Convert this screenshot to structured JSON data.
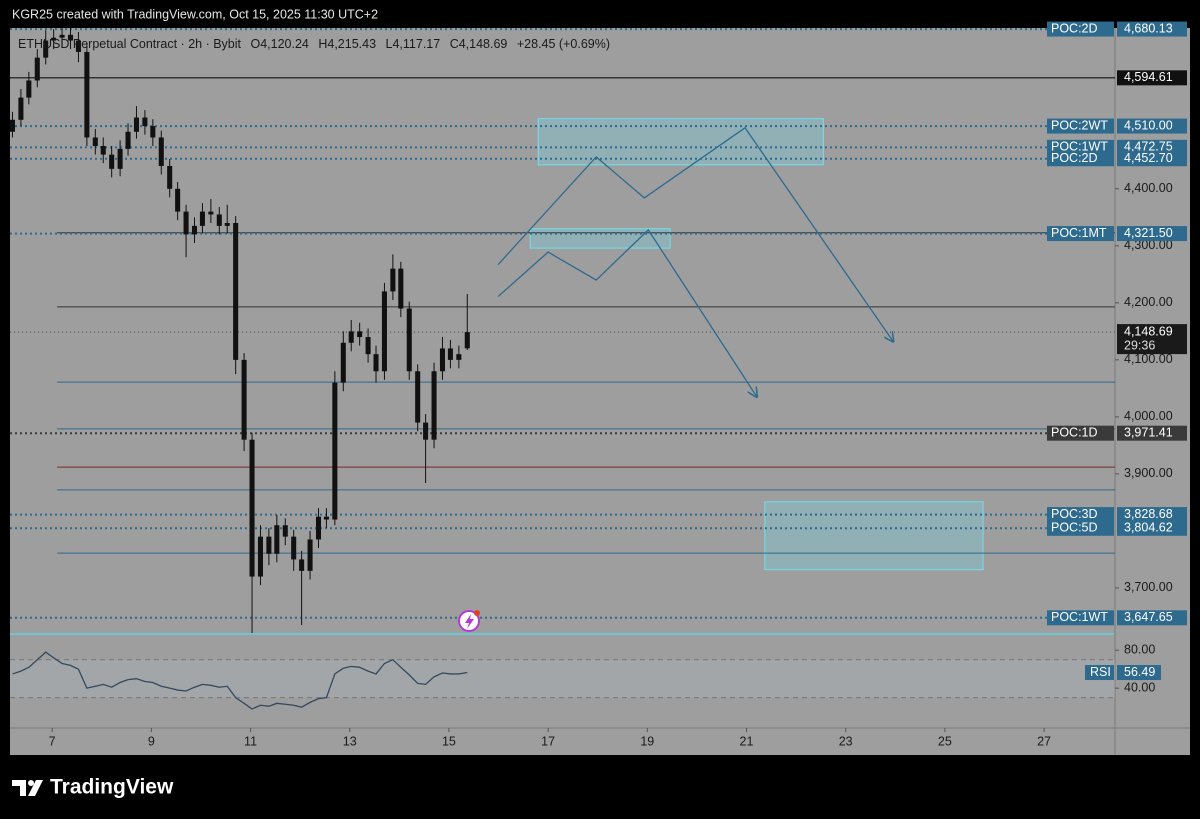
{
  "header": {
    "text": "KGR25 created with TradingView.com, Oct 15, 2025 11:30 UTC+2"
  },
  "footer": {
    "brand": "TradingView"
  },
  "chart_data": {
    "type": "candlestick",
    "legend": {
      "symbol": "ETHUSD Perpetual Contract · 2h · Bybit",
      "items": [
        "O4,120.24",
        "H4,215.43",
        "L4,117.17",
        "C4,148.69",
        "+28.45 (+0.69%)"
      ]
    },
    "xlim": [
      6.15,
      28.43
    ],
    "xticks": [
      7,
      9,
      11,
      13,
      15,
      17,
      19,
      21,
      23,
      25,
      27
    ],
    "ylim": [
      3621,
      4682
    ],
    "yticks": [
      {
        "value": 3700,
        "label": "3,700.00"
      },
      {
        "value": 3900,
        "label": "3,900.00"
      },
      {
        "value": 4000,
        "label": "4,000.00"
      },
      {
        "value": 4100,
        "label": "4,100.00"
      },
      {
        "value": 4200,
        "label": "4,200.00"
      },
      {
        "value": 4300,
        "label": "4,300.00"
      },
      {
        "value": 4400,
        "label": "4,400.00"
      }
    ],
    "candle_color": "#111111",
    "x": [
      6.2,
      6.37,
      6.53,
      6.7,
      6.87,
      7.03,
      7.2,
      7.37,
      7.53,
      7.7,
      7.87,
      8.03,
      8.2,
      8.37,
      8.53,
      8.7,
      8.87,
      9.03,
      9.2,
      9.37,
      9.53,
      9.7,
      9.87,
      10.03,
      10.2,
      10.37,
      10.53,
      10.7,
      10.87,
      11.03,
      11.2,
      11.37,
      11.53,
      11.7,
      11.87,
      12.03,
      12.2,
      12.37,
      12.53,
      12.7,
      12.87,
      13.03,
      13.2,
      13.37,
      13.53,
      13.7,
      13.87,
      14.03,
      14.2,
      14.37,
      14.53,
      14.7,
      14.87,
      15.03,
      15.2,
      15.37
    ],
    "candles": [
      [
        4500,
        4535,
        4490,
        4521
      ],
      [
        4521,
        4575,
        4510,
        4560
      ],
      [
        4560,
        4605,
        4548,
        4590
      ],
      [
        4590,
        4645,
        4578,
        4630
      ],
      [
        4630,
        4678,
        4618,
        4660
      ],
      [
        4660,
        4680,
        4645,
        4665
      ],
      [
        4665,
        4685,
        4650,
        4670
      ],
      [
        4670,
        4684,
        4645,
        4660
      ],
      [
        4660,
        4675,
        4622,
        4640
      ],
      [
        4640,
        4655,
        4475,
        4490
      ],
      [
        4490,
        4505,
        4460,
        4475
      ],
      [
        4475,
        4490,
        4445,
        4460
      ],
      [
        4460,
        4475,
        4420,
        4435
      ],
      [
        4435,
        4485,
        4422,
        4470
      ],
      [
        4470,
        4515,
        4458,
        4500
      ],
      [
        4500,
        4545,
        4488,
        4525
      ],
      [
        4525,
        4538,
        4495,
        4510
      ],
      [
        4510,
        4522,
        4475,
        4490
      ],
      [
        4490,
        4502,
        4425,
        4440
      ],
      [
        4440,
        4452,
        4385,
        4400
      ],
      [
        4400,
        4412,
        4345,
        4360
      ],
      [
        4360,
        4372,
        4280,
        4320
      ],
      [
        4320,
        4350,
        4305,
        4335
      ],
      [
        4335,
        4375,
        4322,
        4360
      ],
      [
        4360,
        4382,
        4340,
        4355
      ],
      [
        4355,
        4368,
        4320,
        4335
      ],
      [
        4335,
        4372,
        4322,
        4340
      ],
      [
        4340,
        4352,
        4075,
        4100
      ],
      [
        4100,
        4112,
        3940,
        3960
      ],
      [
        3960,
        3972,
        3621,
        3720
      ],
      [
        3720,
        3810,
        3705,
        3790
      ],
      [
        3790,
        3805,
        3740,
        3760
      ],
      [
        3760,
        3828,
        3745,
        3810
      ],
      [
        3810,
        3822,
        3775,
        3790
      ],
      [
        3790,
        3802,
        3730,
        3750
      ],
      [
        3750,
        3765,
        3635,
        3730
      ],
      [
        3730,
        3800,
        3715,
        3785
      ],
      [
        3785,
        3840,
        3770,
        3825
      ],
      [
        3825,
        3840,
        3805,
        3820
      ],
      [
        3820,
        4080,
        3810,
        4060
      ],
      [
        4060,
        4150,
        4045,
        4130
      ],
      [
        4130,
        4170,
        4115,
        4150
      ],
      [
        4150,
        4165,
        4125,
        4140
      ],
      [
        4140,
        4155,
        4095,
        4110
      ],
      [
        4110,
        4125,
        4060,
        4080
      ],
      [
        4080,
        4235,
        4065,
        4220
      ],
      [
        4220,
        4285,
        4205,
        4260
      ],
      [
        4260,
        4272,
        4175,
        4190
      ],
      [
        4190,
        4202,
        4065,
        4080
      ],
      [
        4080,
        4092,
        3975,
        3990
      ],
      [
        3990,
        4005,
        3884,
        3960
      ],
      [
        3960,
        4095,
        3945,
        4080
      ],
      [
        4080,
        4140,
        4065,
        4120
      ],
      [
        4120,
        4135,
        4085,
        4100
      ],
      [
        4100,
        4125,
        4085,
        4110
      ],
      [
        4120.24,
        4215.43,
        4117.17,
        4148.69
      ]
    ],
    "current_price": {
      "value": 4148.69,
      "label": "4,148.69",
      "countdown": "29:36"
    },
    "levels": [
      {
        "name": "POC:2D",
        "value": 4680.13,
        "label": "4,680.13",
        "color": "#2d6a8e",
        "style": "dotted"
      },
      {
        "value": 4594.61,
        "label": "4,594.61",
        "color": "#111111",
        "style": "solid"
      },
      {
        "name": "POC:2WT",
        "value": 4510,
        "label": "4,510.00",
        "color": "#2d6a8e",
        "style": "dotted"
      },
      {
        "name": "POC:1WT",
        "value": 4472.75,
        "label": "4,472.75",
        "color": "#2d6a8e",
        "style": "dotted"
      },
      {
        "name": "POC:2D",
        "value": 4452.7,
        "label": "4,452.70",
        "color": "#2d6a8e",
        "style": "dotted"
      },
      {
        "name": "POC:1MT",
        "value": 4321.5,
        "label": "4,321.50",
        "color": "#2d6a8e",
        "style": "dotted"
      },
      {
        "name": "POC:1D",
        "value": 3971.41,
        "label": "3,971.41",
        "color": "#3a3a3a",
        "style": "dotted"
      },
      {
        "name": "POC:3D",
        "value": 3828.68,
        "label": "3,828.68",
        "color": "#2d6a8e",
        "style": "dotted"
      },
      {
        "name": "POC:5D",
        "value": 3804.62,
        "label": "3,804.62",
        "color": "#2d6a8e",
        "style": "dotted"
      },
      {
        "name": "POC:1WT",
        "value": 3647.65,
        "label": "3,647.65",
        "color": "#2d6a8e",
        "style": "dotted"
      }
    ],
    "lines": [
      {
        "value": 4323,
        "from": 7.1,
        "color": "#333333"
      },
      {
        "value": 4193,
        "from": 7.1,
        "color": "#333333"
      },
      {
        "value": 4061,
        "from": 7.1,
        "color": "#2d6a8e"
      },
      {
        "value": 3979,
        "from": 7.1,
        "color": "#2d6a8e"
      },
      {
        "value": 3912,
        "from": 7.1,
        "color": "#7a2a2a"
      },
      {
        "value": 3872,
        "from": 7.1,
        "color": "#2d6a8e"
      },
      {
        "value": 3761,
        "from": 7.1,
        "color": "#2d6a8e"
      }
    ],
    "zones": [
      {
        "x": [
          16.8,
          22.55
        ],
        "y": [
          4442,
          4523
        ]
      },
      {
        "x": [
          16.64,
          19.46
        ],
        "y": [
          4296,
          4330
        ]
      },
      {
        "x": [
          21.37,
          25.77
        ],
        "y": [
          3732,
          3851
        ]
      }
    ],
    "projections": [
      {
        "x": [
          15.99,
          17.97,
          18.94,
          20.97,
          23.96
        ],
        "y": [
          4267,
          4456,
          4384,
          4507,
          4132
        ]
      },
      {
        "x": [
          15.99,
          17.0,
          17.97,
          19.02,
          21.21
        ],
        "y": [
          4211,
          4289,
          4240,
          4328,
          4035
        ]
      }
    ],
    "rsi": {
      "name": "RSI",
      "label": "56.49",
      "color": "#34495e",
      "ylim": [
        -2,
        95
      ],
      "yticks": [
        {
          "value": 80,
          "label": "80.00"
        },
        {
          "value": 40,
          "label": "40.00"
        }
      ],
      "bands": [
        30,
        70
      ],
      "values": [
        55,
        58,
        62,
        70,
        78,
        72,
        66,
        64,
        60,
        40,
        42,
        44,
        41,
        46,
        49,
        50,
        47,
        46,
        42,
        40,
        38,
        37,
        41,
        44,
        43,
        41,
        42,
        30,
        24,
        18,
        22,
        21,
        24,
        23,
        22,
        20,
        25,
        29,
        30,
        55,
        61,
        63,
        62,
        58,
        55,
        66,
        70,
        62,
        54,
        45,
        44,
        52,
        56,
        55,
        55,
        56.49
      ]
    }
  }
}
